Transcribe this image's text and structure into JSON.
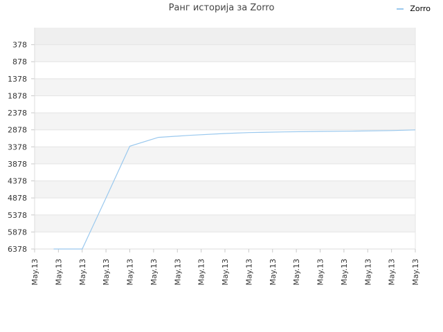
{
  "chart_data": {
    "type": "line",
    "title": "Ранг историја за Zorro",
    "xlabel": "",
    "ylabel": "",
    "y_inverted": true,
    "ylim": [
      -122,
      6378
    ],
    "y_ticks": [
      378,
      878,
      1378,
      1878,
      2378,
      2878,
      3378,
      3878,
      4378,
      4878,
      5378,
      5878,
      6378
    ],
    "x_tick_labels": [
      "May.13",
      "May.13",
      "May.13",
      "May.13",
      "May.13",
      "May.13",
      "May.13",
      "May.13",
      "May.13",
      "May.13",
      "May.13",
      "May.13",
      "May.13",
      "May.13",
      "May.13",
      "May.13",
      "May.13"
    ],
    "grid": true,
    "legend_position": "top-right",
    "series": [
      {
        "name": "Zorro",
        "color": "#99c8ee",
        "x": [
          0.8,
          2,
          3,
          4,
          5.2,
          6.5,
          8,
          9,
          10.5,
          12,
          13.5,
          15,
          16
        ],
        "values": [
          6378,
          6378,
          4880,
          3360,
          3100,
          3040,
          2985,
          2960,
          2940,
          2925,
          2915,
          2900,
          2880
        ]
      }
    ]
  }
}
